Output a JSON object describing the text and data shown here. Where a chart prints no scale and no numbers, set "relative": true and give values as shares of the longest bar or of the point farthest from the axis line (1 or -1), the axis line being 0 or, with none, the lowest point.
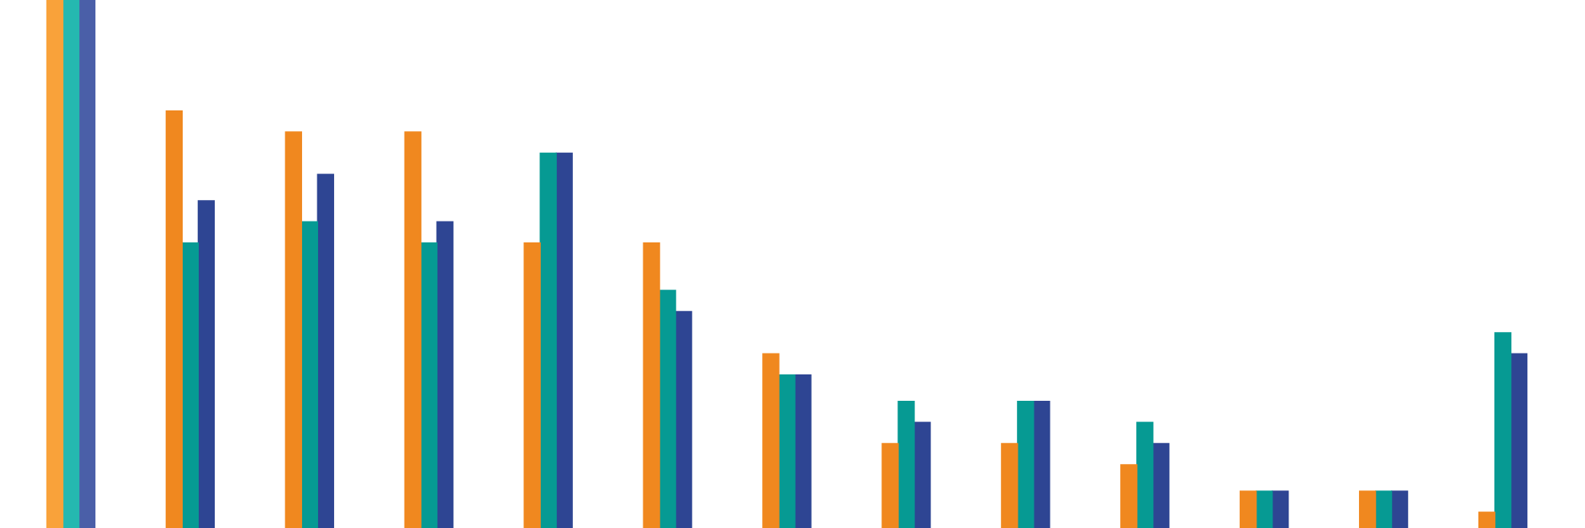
{
  "chart_data": {
    "type": "bar",
    "relative": true,
    "categories": [
      null,
      null,
      null,
      null,
      null,
      null,
      null,
      null,
      null,
      null,
      null,
      null,
      null
    ],
    "series": [
      {
        "color": "#f0881f",
        "colors": [
          "#f9a23a",
          null,
          null,
          null,
          null,
          null,
          null,
          null,
          null,
          null,
          null,
          null,
          null
        ],
        "values": [
          1,
          0.79,
          0.75,
          0.75,
          0.54,
          0.54,
          0.33,
          0.16,
          0.16,
          0.12,
          0.07,
          0.07,
          0.03
        ]
      },
      {
        "color": "#069a93",
        "colors": [
          "#25b8b0",
          null,
          null,
          null,
          null,
          null,
          null,
          null,
          null,
          null,
          null,
          null,
          null
        ],
        "values": [
          1,
          0.54,
          0.58,
          0.54,
          0.71,
          0.45,
          0.29,
          0.24,
          0.24,
          0.2,
          0.07,
          0.07,
          0.37
        ]
      },
      {
        "color": "#2e4593",
        "colors": [
          "#4a5fa8",
          null,
          null,
          null,
          null,
          null,
          null,
          null,
          null,
          null,
          null,
          null,
          null
        ],
        "values": [
          1,
          0.62,
          0.67,
          0.58,
          0.71,
          0.41,
          0.29,
          0.2,
          0.24,
          0.16,
          0.07,
          0.07,
          0.33
        ]
      }
    ],
    "legend": false
  }
}
